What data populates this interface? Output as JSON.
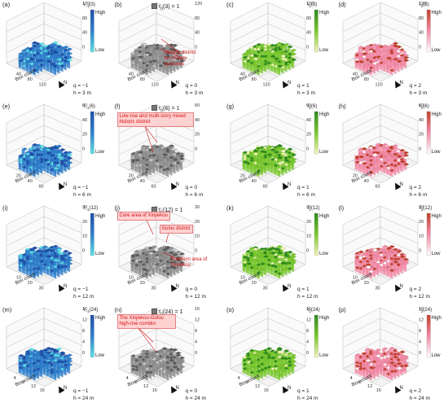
{
  "panels": [
    {
      "label": "(a)",
      "title": "τ",
      "title_sub": "−1",
      "title_arg": "(3)",
      "high": "High",
      "low": "Low",
      "q": "q = −1",
      "h": "h = 3 m",
      "ticks": [
        "120",
        "80",
        "40",
        "0"
      ],
      "axis": [
        "40",
        "80",
        "120"
      ],
      "box_count": "Box count",
      "north": "N",
      "color": "blue"
    },
    {
      "label": "(b)",
      "title": "τ",
      "title_sub": "0",
      "title_arg": "(3) = 1",
      "q": "q = 0",
      "h": "h = 3 m",
      "ticks": [
        "120",
        "80",
        "40",
        "0"
      ],
      "axis": [
        "40",
        "80",
        "120"
      ],
      "box_count": "Box count",
      "north": "N",
      "color": "gray"
    },
    {
      "label": "(c)",
      "title": "τ",
      "title_sub": "1",
      "title_arg": "(3)",
      "high": "High",
      "low": "Low",
      "q": "q = 1",
      "h": "h = 3 m",
      "ticks": [
        "120",
        "80",
        "40",
        "0"
      ],
      "axis": [
        "40",
        "80",
        "120"
      ],
      "box_count": "Box count",
      "north": "N",
      "color": "green"
    },
    {
      "label": "(d)",
      "title": "τ",
      "title_sub": "2",
      "title_arg": "(3)",
      "high": "High",
      "low": "Low",
      "q": "q = 2",
      "h": "h = 3 m",
      "ticks": [
        "120",
        "80",
        "40",
        "0"
      ],
      "axis": [
        "40",
        "80",
        "120"
      ],
      "box_count": "Box count",
      "north": "N",
      "color": "pink"
    },
    {
      "label": "(e)",
      "title": "τ",
      "title_sub": "−1",
      "title_arg": "(6)",
      "high": "High",
      "low": "Low",
      "q": "q = −1",
      "h": "h = 6 m",
      "ticks": [
        "60",
        "40",
        "20",
        "0"
      ],
      "axis": [
        "20",
        "40",
        "60"
      ],
      "box_count": "Box count",
      "north": "N",
      "color": "blue"
    },
    {
      "label": "(f)",
      "title": "τ",
      "title_sub": "0",
      "title_arg": "(6) = 1",
      "q": "q = 0",
      "h": "h = 6 m",
      "ticks": [
        "60",
        "40",
        "20",
        "0"
      ],
      "axis": [
        "20",
        "40",
        "60"
      ],
      "box_count": "Box count",
      "north": "N",
      "color": "gray"
    },
    {
      "label": "(g)",
      "title": "τ",
      "title_sub": "1",
      "title_arg": "(6)",
      "high": "High",
      "low": "Low",
      "q": "q = 1",
      "h": "h = 6 m",
      "ticks": [
        "60",
        "40",
        "20",
        "0"
      ],
      "axis": [
        "20",
        "40",
        "60"
      ],
      "box_count": "Box count",
      "north": "N",
      "color": "green"
    },
    {
      "label": "(h)",
      "title": "τ",
      "title_sub": "2",
      "title_arg": "(6)",
      "high": "High",
      "low": "Low",
      "q": "q = 2",
      "h": "h = 6 m",
      "ticks": [
        "60",
        "40",
        "20",
        "0"
      ],
      "axis": [
        "20",
        "40",
        "60"
      ],
      "box_count": "Box count",
      "north": "N",
      "color": "pink"
    },
    {
      "label": "(i)",
      "title": "τ",
      "title_sub": "−1",
      "title_arg": "(12)",
      "high": "High",
      "low": "Low",
      "q": "q = −1",
      "h": "h = 12 m",
      "ticks": [
        "30",
        "20",
        "10",
        "0"
      ],
      "axis": [
        "10",
        "20",
        "30"
      ],
      "box_count": "Box count",
      "north": "N",
      "color": "blue"
    },
    {
      "label": "(j)",
      "title": "τ",
      "title_sub": "0",
      "title_arg": "(12) = 1",
      "q": "q = 0",
      "h": "h = 12 m",
      "ticks": [
        "30",
        "20",
        "10",
        "0"
      ],
      "axis": [
        "10",
        "20",
        "30"
      ],
      "box_count": "Box count",
      "north": "N",
      "color": "gray"
    },
    {
      "label": "(k)",
      "title": "τ",
      "title_sub": "1",
      "title_arg": "(12)",
      "high": "High",
      "low": "Low",
      "q": "q = 1",
      "h": "h = 12 m",
      "ticks": [
        "30",
        "20",
        "10",
        "0"
      ],
      "axis": [
        "10",
        "20",
        "30"
      ],
      "box_count": "Box count",
      "north": "N",
      "color": "green"
    },
    {
      "label": "(l)",
      "title": "τ",
      "title_sub": "2",
      "title_arg": "(12)",
      "high": "High",
      "low": "Low",
      "q": "q = 2",
      "h": "h = 12 m",
      "ticks": [
        "30",
        "20",
        "10",
        "0"
      ],
      "axis": [
        "10",
        "20",
        "30"
      ],
      "box_count": "Box count",
      "north": "N",
      "color": "pink"
    },
    {
      "label": "(m)",
      "title": "τ",
      "title_sub": "−1",
      "title_arg": "(24)",
      "high": "High",
      "low": "Low",
      "q": "q = −1",
      "h": "h = 24 m",
      "ticks": [
        "16",
        "12",
        "8",
        "4",
        "0"
      ],
      "axis": [
        "4",
        "8",
        "12",
        "16"
      ],
      "box_count": "Box count",
      "north": "N",
      "color": "blue"
    },
    {
      "label": "(n)",
      "title": "τ",
      "title_sub": "0",
      "title_arg": "(24) = 1",
      "q": "q = 0",
      "h": "h = 24 m",
      "ticks": [
        "16",
        "12",
        "8",
        "4",
        "0"
      ],
      "axis": [
        "4",
        "8",
        "12",
        "16"
      ],
      "box_count": "Box count",
      "north": "N",
      "color": "gray"
    },
    {
      "label": "(o)",
      "title": "τ",
      "title_sub": "1",
      "title_arg": "(24)",
      "high": "High",
      "low": "Low",
      "q": "q = 1",
      "h": "h = 24 m",
      "ticks": [
        "16",
        "12",
        "8",
        "4",
        "0"
      ],
      "axis": [
        "4",
        "8",
        "12",
        "16"
      ],
      "box_count": "Box count",
      "north": "N",
      "color": "green"
    },
    {
      "label": "(p)",
      "title": "τ",
      "title_sub": "2",
      "title_arg": "(24)",
      "high": "High",
      "low": "Low",
      "q": "q = 2",
      "h": "h = 24 m",
      "ticks": [
        "16",
        "12",
        "8",
        "4",
        "0"
      ],
      "axis": [
        "4",
        "8",
        "12",
        "16"
      ],
      "box_count": "Box count",
      "north": "N",
      "color": "pink"
    }
  ],
  "annotations": {
    "b": [
      "Historic district for military purposes"
    ],
    "f": [
      "Low-rise and multi-story mixed historic district"
    ],
    "j": [
      "Core area of Xinjiekou",
      "Gulou district",
      "Southern area of Xinjiekou"
    ],
    "n": [
      "The Xinjiekou-Gulou high-rise corridor"
    ]
  },
  "colors": {
    "blue": {
      "low": "#5ce1e6",
      "high": "#1f4fa8",
      "mid": "#2f7fcc"
    },
    "gray": {
      "low": "#c9c9c9",
      "high": "#5a5a5a",
      "mid": "#8e8e8e"
    },
    "green": {
      "low": "#f2f5b8",
      "high": "#2e8b1e",
      "mid": "#79c82e"
    },
    "pink": {
      "low": "#ffffff",
      "high": "#c2402a",
      "mid": "#f28aa6"
    },
    "annotation_red": "#d01010"
  }
}
